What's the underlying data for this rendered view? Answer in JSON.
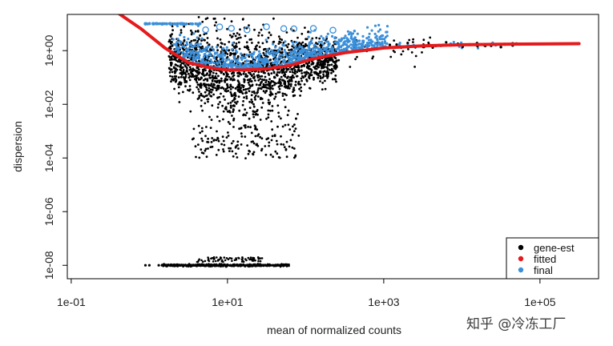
{
  "chart_data": {
    "type": "scatter",
    "title": "",
    "xlabel": "mean of normalized counts",
    "ylabel": "dispersion",
    "x_scale": "log10",
    "y_scale": "log10",
    "xlim_log10": [
      -1.05,
      5.75
    ],
    "ylim_log10": [
      -8.5,
      1.35
    ],
    "x_ticks": [
      {
        "log10": -1,
        "label": "1e-01"
      },
      {
        "log10": 1,
        "label": "1e+01"
      },
      {
        "log10": 3,
        "label": "1e+03"
      },
      {
        "log10": 5,
        "label": "1e+05"
      }
    ],
    "y_ticks": [
      {
        "log10": 0,
        "label": "1e+00"
      },
      {
        "log10": -2,
        "label": "1e-02"
      },
      {
        "log10": -4,
        "label": "1e-04"
      },
      {
        "log10": -6,
        "label": "1e-06"
      },
      {
        "log10": -8,
        "label": "1e-08"
      }
    ],
    "legend": {
      "position": "bottom-right",
      "entries": [
        {
          "label": "gene-est",
          "color": "#000000"
        },
        {
          "label": "fitted",
          "color": "#e41a1c"
        },
        {
          "label": "final",
          "color": "#3b8fd9"
        }
      ]
    },
    "series": [
      {
        "name": "fitted",
        "color": "#e41a1c",
        "x_log10": [
          -0.4,
          -0.1,
          0.2,
          0.5,
          0.8,
          1.0,
          1.2,
          1.5,
          1.8,
          2.1,
          2.5,
          3.0,
          3.5,
          4.0,
          4.5,
          5.0,
          5.5
        ],
        "y_log10": [
          1.4,
          0.8,
          0.1,
          -0.45,
          -0.65,
          -0.72,
          -0.72,
          -0.68,
          -0.55,
          -0.3,
          -0.08,
          0.1,
          0.18,
          0.22,
          0.24,
          0.25,
          0.26
        ]
      }
    ]
  },
  "watermark": "知乎 @冷冻工厂",
  "colors": {
    "gene_est": "#000000",
    "fitted": "#e41a1c",
    "final": "#3b8fd9"
  }
}
